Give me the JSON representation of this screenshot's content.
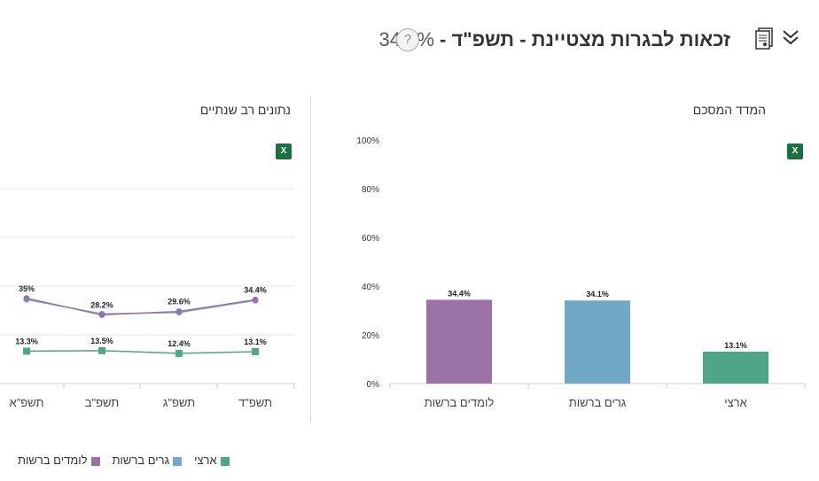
{
  "header": {
    "title": "זכאות לבגרות מצטיינת - תשפ\"ד - ",
    "value": "34.4%",
    "help": "?"
  },
  "left_section": {
    "title": "נתונים רב שנתיים",
    "export": "X"
  },
  "right_section": {
    "title": "המדד המסכם",
    "export": "X"
  },
  "colors": {
    "learners": "#9b72a6",
    "residents": "#70a8c6",
    "national": "#4fa58a"
  },
  "legend": [
    {
      "label": "ארצי",
      "color": "#4fa58a"
    },
    {
      "label": "גרים ברשות",
      "color": "#70a8c6"
    },
    {
      "label": "לומדים ברשות",
      "color": "#9b72a6"
    }
  ],
  "chart_data": [
    {
      "type": "bar",
      "title": "המדד המסכם",
      "categories": [
        "לומדים ברשות",
        "גרים ברשות",
        "ארצי"
      ],
      "values": [
        34.4,
        34.1,
        13.1
      ],
      "labels": [
        "34.4%",
        "34.1%",
        "13.1%"
      ],
      "colors": [
        "#9b72a6",
        "#70a8c6",
        "#4fa58a"
      ],
      "ylim": [
        0,
        100
      ],
      "yticks": [
        "0%",
        "20%",
        "40%",
        "60%",
        "80%",
        "100%"
      ],
      "grid": false
    },
    {
      "type": "line",
      "title": "נתונים רב שנתיים",
      "categories": [
        "תשפ\"א",
        "תשפ\"ב",
        "תשפ\"ג",
        "תשפ\"ד"
      ],
      "ylim": [
        0,
        100
      ],
      "grid": true,
      "series": [
        {
          "name": "לומדים ברשות",
          "color": "#9b72a6",
          "values": [
            35,
            28.2,
            29.6,
            34.4
          ],
          "labels": [
            "35%",
            "28.2%",
            "29.6%",
            "34.4%"
          ]
        },
        {
          "name": "גרים ברשות",
          "color": "#70a8c6",
          "values": [
            34.5,
            28.6,
            29.2,
            34.1
          ]
        },
        {
          "name": "ארצי",
          "color": "#4fa58a",
          "values": [
            13.3,
            13.5,
            12.4,
            13.1
          ],
          "labels": [
            "13.3%",
            "13.5%",
            "12.4%",
            "13.1%"
          ]
        }
      ]
    }
  ]
}
